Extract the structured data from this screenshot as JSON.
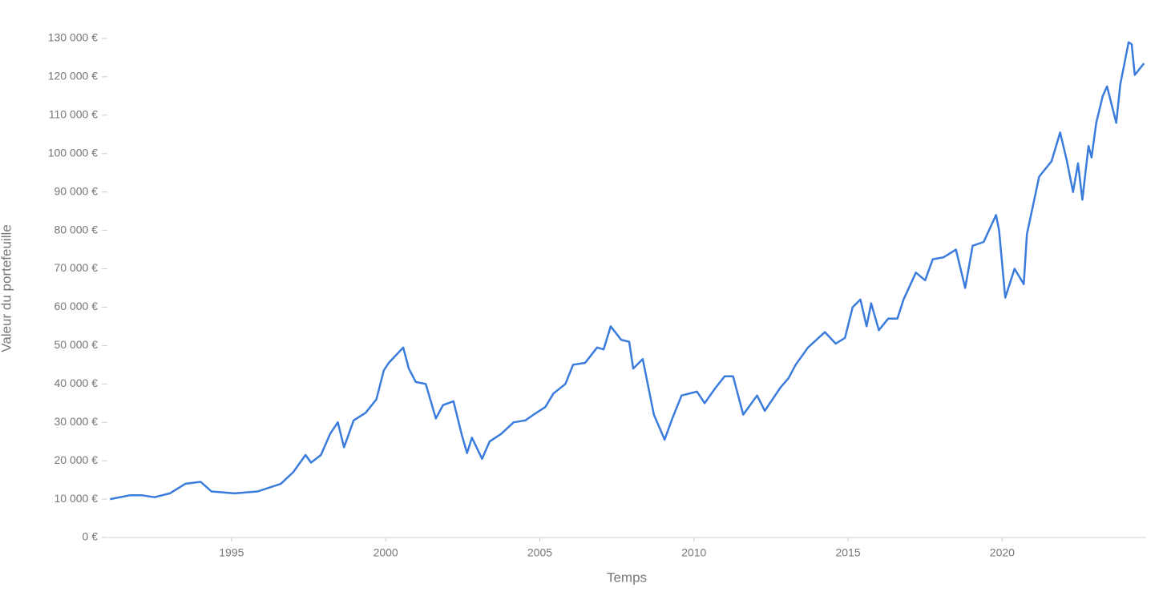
{
  "chart_data": {
    "type": "line",
    "xlabel": "Temps",
    "ylabel": "Valeur du portefeuille",
    "x": [
      1991.06,
      1991.7,
      1992.1,
      1992.5,
      1993.0,
      1993.5,
      1994.0,
      1994.35,
      1995.1,
      1995.85,
      1996.6,
      1997.0,
      1997.4,
      1997.58,
      1997.9,
      1998.2,
      1998.45,
      1998.65,
      1998.96,
      1999.35,
      1999.7,
      1999.94,
      2000.1,
      2000.57,
      2000.75,
      2000.98,
      2001.3,
      2001.63,
      2001.86,
      2002.2,
      2002.46,
      2002.64,
      2002.8,
      2003.13,
      2003.37,
      2003.75,
      2004.15,
      2004.53,
      2004.8,
      2005.18,
      2005.44,
      2005.83,
      2006.08,
      2006.47,
      2006.86,
      2007.07,
      2007.3,
      2007.64,
      2007.9,
      2008.03,
      2008.34,
      2008.7,
      2009.05,
      2009.3,
      2009.6,
      2010.1,
      2010.35,
      2010.7,
      2011.0,
      2011.27,
      2011.6,
      2012.05,
      2012.3,
      2012.8,
      2013.07,
      2013.3,
      2013.7,
      2014.25,
      2014.6,
      2014.9,
      2015.15,
      2015.4,
      2015.6,
      2015.75,
      2016.0,
      2016.3,
      2016.6,
      2016.8,
      2017.2,
      2017.5,
      2017.75,
      2018.1,
      2018.5,
      2018.8,
      2019.04,
      2019.4,
      2019.8,
      2019.9,
      2020.1,
      2020.4,
      2020.7,
      2020.8,
      2021.2,
      2021.6,
      2021.88,
      2022.1,
      2022.3,
      2022.46,
      2022.6,
      2022.8,
      2022.9,
      2023.05,
      2023.26,
      2023.4,
      2023.7,
      2023.83,
      2024.1,
      2024.2,
      2024.3,
      2024.6
    ],
    "series": [
      {
        "color": "#3a7bdc",
        "values": [
          10000,
          11000,
          11000,
          10500,
          11500,
          14000,
          14500,
          12000,
          11500,
          12000,
          14000,
          17000,
          21500,
          19500,
          21500,
          27000,
          30000,
          23500,
          30500,
          32500,
          36000,
          43500,
          45500,
          49500,
          44000,
          40500,
          40000,
          31000,
          34500,
          35500,
          27000,
          22000,
          26000,
          20500,
          25000,
          27000,
          30000,
          30500,
          32000,
          34000,
          37500,
          40000,
          45000,
          45500,
          49500,
          49000,
          55000,
          51500,
          51000,
          44000,
          46500,
          32000,
          25500,
          31000,
          37000,
          38000,
          35000,
          39000,
          42000,
          42000,
          32000,
          37000,
          33000,
          39000,
          41500,
          45000,
          49500,
          53500,
          50500,
          52000,
          60000,
          62000,
          55000,
          61000,
          54000,
          57000,
          57000,
          62000,
          69000,
          67000,
          72500,
          73000,
          75000,
          65000,
          76000,
          77000,
          84000,
          80000,
          62500,
          70000,
          66000,
          79000,
          94000,
          98000,
          105500,
          98000,
          90000,
          97500,
          88000,
          102000,
          99000,
          108000,
          115000,
          117500,
          108000,
          118000,
          129000,
          128500,
          120500,
          123500
        ]
      }
    ],
    "xlim": [
      1991,
      2024.67
    ],
    "xticks": [
      1995,
      2000,
      2005,
      2010,
      2015,
      2020
    ],
    "ylim": [
      0,
      130000
    ],
    "yticks": [
      {
        "value": 0,
        "label": "0 €"
      },
      {
        "value": 10000,
        "label": "10 000 €"
      },
      {
        "value": 20000,
        "label": "20 000 €"
      },
      {
        "value": 30000,
        "label": "30 000 €"
      },
      {
        "value": 40000,
        "label": "40 000 €"
      },
      {
        "value": 50000,
        "label": "50 000 €"
      },
      {
        "value": 60000,
        "label": "60 000 €"
      },
      {
        "value": 70000,
        "label": "70 000 €"
      },
      {
        "value": 80000,
        "label": "80 000 €"
      },
      {
        "value": 90000,
        "label": "90 000 €"
      },
      {
        "value": 100000,
        "label": "100 000 €"
      },
      {
        "value": 110000,
        "label": "110 000 €"
      },
      {
        "value": 120000,
        "label": "120 000 €"
      },
      {
        "value": 130000,
        "label": "130 000 €"
      }
    ],
    "grid": false
  }
}
